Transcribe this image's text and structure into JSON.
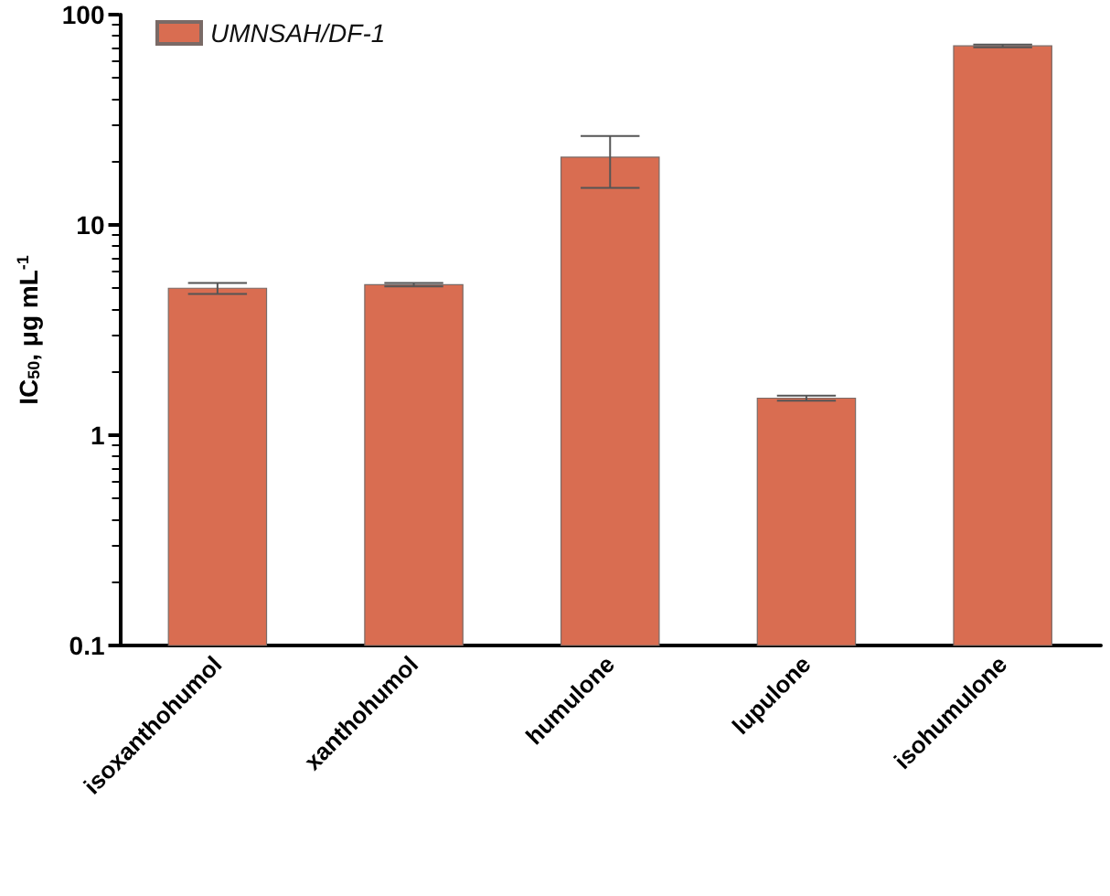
{
  "chart_data": {
    "type": "bar",
    "ylabel": "IC$_{50}$, μg mL$^{-1}$",
    "categories": [
      "isoxanthohumol",
      "xanthohumol",
      "humulone",
      "lupulone",
      "isohumulone"
    ],
    "series": [
      {
        "name": "UMNSAH/DF-1",
        "color": "#d96d51",
        "values": [
          5.0,
          5.2,
          21,
          1.5,
          71
        ],
        "errors": [
          0.3,
          0.1,
          [
            15,
            26.5
          ],
          0.04,
          1
        ]
      }
    ],
    "ylim": [
      0.1,
      100
    ],
    "yticks": [
      0.1,
      1,
      10,
      100
    ],
    "log": true,
    "grid": false,
    "legend": "top left"
  }
}
